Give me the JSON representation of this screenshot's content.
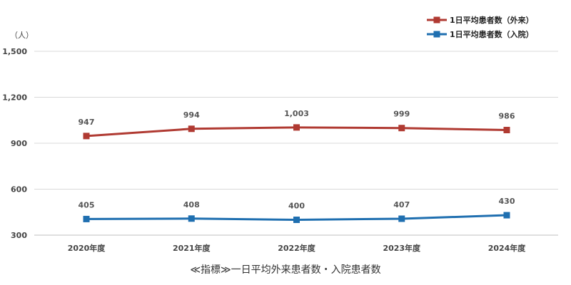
{
  "chart_data": {
    "type": "line",
    "unit_label": "（人）",
    "categories": [
      "2020年度",
      "2021年度",
      "2022年度",
      "2023年度",
      "2024年度"
    ],
    "yticks": [
      300,
      600,
      900,
      1200,
      1500
    ],
    "ytick_labels": [
      "300",
      "600",
      "900",
      "1,200",
      "1,500"
    ],
    "ylim": [
      300,
      1500
    ],
    "grid": true,
    "legend_position": "top-right",
    "series": [
      {
        "name": "1日平均患者数（外来）",
        "values": [
          947,
          994,
          1003,
          999,
          986
        ],
        "labels": [
          "947",
          "994",
          "1,003",
          "999",
          "986"
        ],
        "color": "#b03a32"
      },
      {
        "name": "1日平均患者数（入院）",
        "values": [
          405,
          408,
          400,
          407,
          430
        ],
        "labels": [
          "405",
          "408",
          "400",
          "407",
          "430"
        ],
        "color": "#1f6fb0"
      }
    ],
    "caption": "≪指標≫一日平均外来患者数・入院患者数"
  }
}
